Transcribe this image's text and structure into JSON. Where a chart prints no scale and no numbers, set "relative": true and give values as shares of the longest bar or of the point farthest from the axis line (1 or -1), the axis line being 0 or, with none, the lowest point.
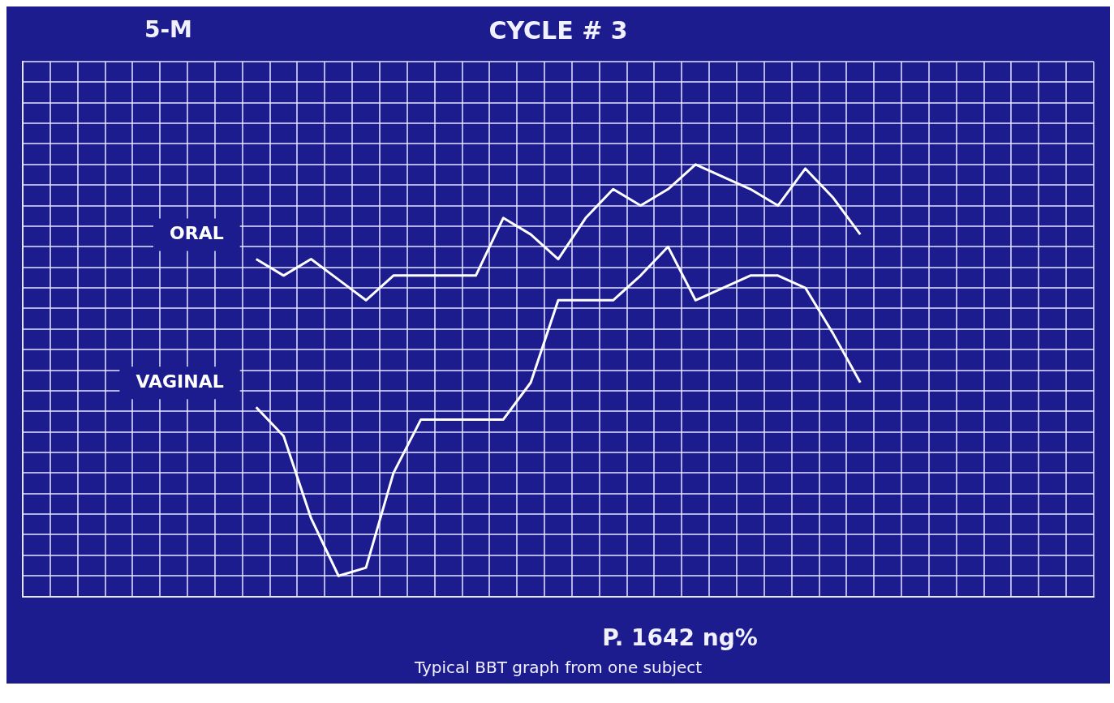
{
  "chart_data": {
    "type": "line",
    "title": "CYCLE # 3",
    "relative": true,
    "grid": true,
    "legend": false,
    "line_style": "solid",
    "categories": [
      null,
      null,
      null,
      null,
      null,
      null,
      null,
      null,
      null,
      null,
      null,
      null,
      null,
      null,
      null,
      null,
      null,
      null,
      null,
      null,
      null,
      null,
      null,
      null,
      null,
      null,
      null,
      null,
      null,
      null,
      null,
      null,
      null,
      null,
      null,
      null,
      null,
      null,
      null
    ],
    "series": [
      {
        "name": "ORAL",
        "color": "#ffffff",
        "values": [
          null,
          null,
          null,
          null,
          null,
          null,
          null,
          null,
          0.77,
          0.73,
          0.77,
          0.72,
          0.67,
          0.73,
          0.73,
          0.73,
          0.73,
          0.87,
          0.83,
          0.77,
          0.87,
          0.94,
          0.9,
          0.94,
          1,
          null,
          0.94,
          0.9,
          0.99,
          0.92,
          0.83,
          null,
          null,
          null,
          null,
          null,
          null,
          null,
          null
        ]
      },
      {
        "name": "VAGINAL",
        "color": "#ffffff",
        "values": [
          null,
          null,
          null,
          null,
          null,
          null,
          null,
          null,
          0.41,
          0.34,
          0.14,
          0,
          0.02,
          0.25,
          0.38,
          0.38,
          0.38,
          0.38,
          0.47,
          0.67,
          0.67,
          0.67,
          0.73,
          0.8,
          0.67,
          null,
          0.73,
          0.73,
          0.7,
          0.59,
          0.47,
          null,
          null,
          null,
          null,
          null,
          null,
          null,
          null
        ]
      }
    ],
    "annotations": [
      "5-M",
      "P. 1642 ng%",
      "Typical BBT graph from one subject"
    ]
  }
}
